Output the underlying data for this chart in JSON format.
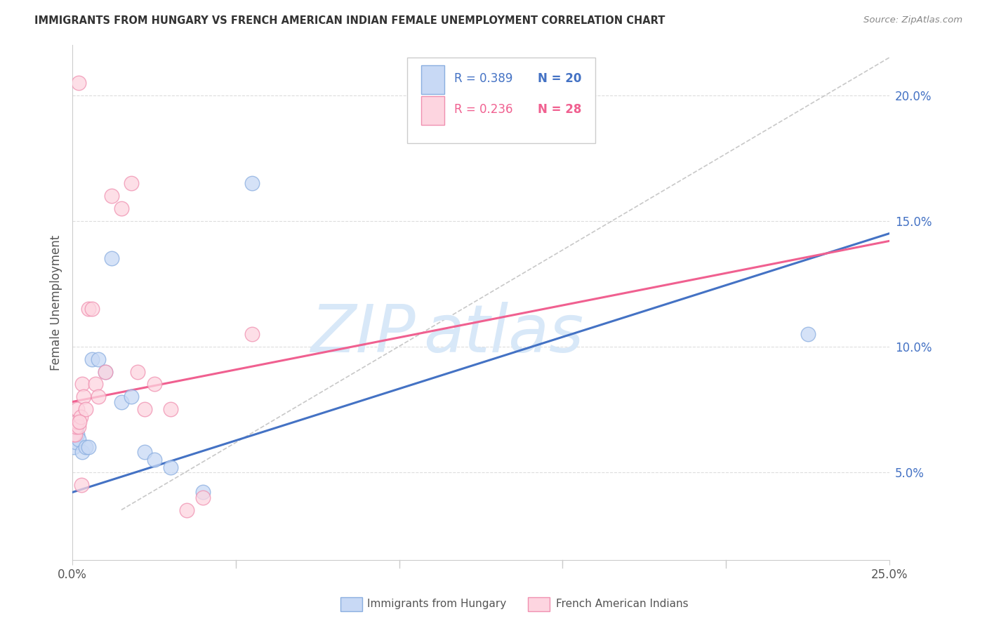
{
  "title": "IMMIGRANTS FROM HUNGARY VS FRENCH AMERICAN INDIAN FEMALE UNEMPLOYMENT CORRELATION CHART",
  "source": "Source: ZipAtlas.com",
  "ylabel": "Female Unemployment",
  "yaxis_ticks": [
    5.0,
    10.0,
    15.0,
    20.0
  ],
  "xlim": [
    0.0,
    25.0
  ],
  "ylim": [
    1.5,
    22.0
  ],
  "blue_R": "R = 0.389",
  "blue_N": "N = 20",
  "pink_R": "R = 0.236",
  "pink_N": "N = 28",
  "blue_label": "Immigrants from Hungary",
  "pink_label": "French American Indians",
  "background_color": "#ffffff",
  "grid_color": "#dddddd",
  "watermark_zip": "ZIP",
  "watermark_atlas": "atlas",
  "blue_scatter_x": [
    0.05,
    0.1,
    0.15,
    0.2,
    0.3,
    0.4,
    0.5,
    0.6,
    0.8,
    1.0,
    1.2,
    1.5,
    1.8,
    2.2,
    2.5,
    3.0,
    4.0,
    5.5,
    0.12,
    22.5
  ],
  "blue_scatter_y": [
    6.0,
    6.2,
    6.5,
    6.3,
    5.8,
    6.0,
    6.0,
    9.5,
    9.5,
    9.0,
    13.5,
    7.8,
    8.0,
    5.8,
    5.5,
    5.2,
    4.2,
    16.5,
    6.8,
    10.5
  ],
  "pink_scatter_x": [
    0.05,
    0.08,
    0.1,
    0.12,
    0.15,
    0.18,
    0.2,
    0.25,
    0.3,
    0.35,
    0.4,
    0.5,
    0.6,
    0.7,
    0.8,
    1.0,
    1.2,
    1.5,
    1.8,
    2.0,
    2.2,
    2.5,
    3.0,
    3.5,
    4.0,
    5.5,
    0.22,
    0.28
  ],
  "pink_scatter_y": [
    6.5,
    6.5,
    6.8,
    7.0,
    7.5,
    6.8,
    20.5,
    7.2,
    8.5,
    8.0,
    7.5,
    11.5,
    11.5,
    8.5,
    8.0,
    9.0,
    16.0,
    15.5,
    16.5,
    9.0,
    7.5,
    8.5,
    7.5,
    3.5,
    4.0,
    10.5,
    7.0,
    4.5
  ],
  "blue_line_x": [
    0.0,
    25.0
  ],
  "blue_line_y": [
    4.2,
    14.5
  ],
  "pink_line_x": [
    0.0,
    25.0
  ],
  "pink_line_y": [
    7.8,
    14.2
  ],
  "dash_line_x": [
    1.5,
    25.0
  ],
  "dash_line_y": [
    3.5,
    21.5
  ]
}
